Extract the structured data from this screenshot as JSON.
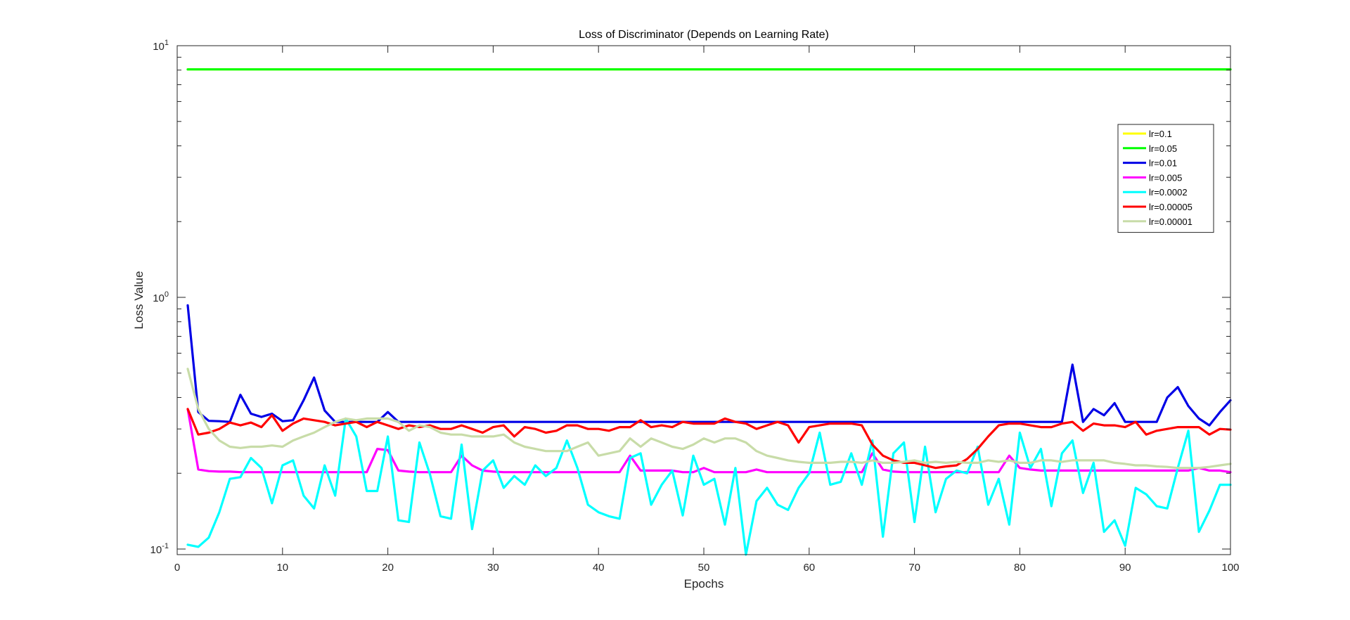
{
  "chart_data": {
    "type": "line",
    "title": "Loss of Discriminator (Depends on Learning Rate)",
    "xlabel": "Epochs",
    "ylabel": "Loss Value",
    "xlim": [
      0,
      100
    ],
    "ylim": [
      0.095,
      10
    ],
    "yscale": "log",
    "x_ticks": [
      0,
      10,
      20,
      30,
      40,
      50,
      60,
      70,
      80,
      90,
      100
    ],
    "y_ticks": [
      {
        "value": 0.1,
        "base": "10",
        "exp": "-1"
      },
      {
        "value": 1,
        "base": "10",
        "exp": "0"
      },
      {
        "value": 10,
        "base": "10",
        "exp": "1"
      }
    ],
    "grid": false,
    "legend_position": "top-right",
    "series": [
      {
        "name": "lr=0.1",
        "color": "#ffff00",
        "values": [
          8.05,
          8.05,
          8.05,
          8.05,
          8.05,
          8.05,
          8.05,
          8.05,
          8.05,
          8.05,
          8.05,
          8.05,
          8.05,
          8.05,
          8.05,
          8.05,
          8.05,
          8.05,
          8.05,
          8.05,
          8.05,
          8.05,
          8.05,
          8.05,
          8.05,
          8.05,
          8.05,
          8.05,
          8.05,
          8.05,
          8.05,
          8.05,
          8.05,
          8.05,
          8.05,
          8.05,
          8.05,
          8.05,
          8.05,
          8.05,
          8.05,
          8.05,
          8.05,
          8.05,
          8.05,
          8.05,
          8.05,
          8.05,
          8.05,
          8.05,
          8.05,
          8.05,
          8.05,
          8.05,
          8.05,
          8.05,
          8.05,
          8.05,
          8.05,
          8.05,
          8.05,
          8.05,
          8.05,
          8.05,
          8.05,
          8.05,
          8.05,
          8.05,
          8.05,
          8.05,
          8.05,
          8.05,
          8.05,
          8.05,
          8.05,
          8.05,
          8.05,
          8.05,
          8.05,
          8.05,
          8.05,
          8.05,
          8.05,
          8.05,
          8.05,
          8.05,
          8.05,
          8.05,
          8.05,
          8.05,
          8.05,
          8.05,
          8.05,
          8.05,
          8.05,
          8.05,
          8.05,
          8.05,
          8.05,
          8.05
        ]
      },
      {
        "name": "lr=0.05",
        "color": "#00ff00",
        "values": [
          8.05,
          8.05,
          8.05,
          8.05,
          8.05,
          8.05,
          8.05,
          8.05,
          8.05,
          8.05,
          8.05,
          8.05,
          8.05,
          8.05,
          8.05,
          8.05,
          8.05,
          8.05,
          8.05,
          8.05,
          8.05,
          8.05,
          8.05,
          8.05,
          8.05,
          8.05,
          8.05,
          8.05,
          8.05,
          8.05,
          8.05,
          8.05,
          8.05,
          8.05,
          8.05,
          8.05,
          8.05,
          8.05,
          8.05,
          8.05,
          8.05,
          8.05,
          8.05,
          8.05,
          8.05,
          8.05,
          8.05,
          8.05,
          8.05,
          8.05,
          8.05,
          8.05,
          8.05,
          8.05,
          8.05,
          8.05,
          8.05,
          8.05,
          8.05,
          8.05,
          8.05,
          8.05,
          8.05,
          8.05,
          8.05,
          8.05,
          8.05,
          8.05,
          8.05,
          8.05,
          8.05,
          8.05,
          8.05,
          8.05,
          8.05,
          8.05,
          8.05,
          8.05,
          8.05,
          8.05,
          8.05,
          8.05,
          8.05,
          8.05,
          8.05,
          8.05,
          8.05,
          8.05,
          8.05,
          8.05,
          8.05,
          8.05,
          8.05,
          8.05,
          8.05,
          8.05,
          8.05,
          8.05,
          8.05,
          8.05
        ]
      },
      {
        "name": "lr=0.01",
        "color": "#0000e6",
        "values": [
          0.93,
          0.35,
          0.323,
          0.322,
          0.32,
          0.41,
          0.345,
          0.335,
          0.345,
          0.322,
          0.325,
          0.39,
          0.48,
          0.355,
          0.32,
          0.32,
          0.32,
          0.32,
          0.32,
          0.35,
          0.32,
          0.32,
          0.32,
          0.32,
          0.32,
          0.32,
          0.32,
          0.32,
          0.32,
          0.32,
          0.32,
          0.32,
          0.32,
          0.32,
          0.32,
          0.32,
          0.32,
          0.32,
          0.32,
          0.32,
          0.32,
          0.32,
          0.32,
          0.32,
          0.32,
          0.32,
          0.32,
          0.32,
          0.32,
          0.32,
          0.32,
          0.32,
          0.32,
          0.32,
          0.32,
          0.32,
          0.32,
          0.32,
          0.32,
          0.32,
          0.32,
          0.32,
          0.32,
          0.32,
          0.32,
          0.32,
          0.32,
          0.32,
          0.32,
          0.32,
          0.32,
          0.32,
          0.32,
          0.32,
          0.32,
          0.32,
          0.32,
          0.32,
          0.32,
          0.32,
          0.32,
          0.32,
          0.32,
          0.32,
          0.54,
          0.32,
          0.36,
          0.34,
          0.38,
          0.32,
          0.32,
          0.32,
          0.32,
          0.4,
          0.44,
          0.37,
          0.33,
          0.31,
          0.35,
          0.39
        ]
      },
      {
        "name": "lr=0.005",
        "color": "#ff00ff",
        "values": [
          0.36,
          0.207,
          0.204,
          0.203,
          0.203,
          0.202,
          0.202,
          0.202,
          0.202,
          0.202,
          0.202,
          0.202,
          0.202,
          0.202,
          0.202,
          0.202,
          0.202,
          0.202,
          0.25,
          0.247,
          0.205,
          0.203,
          0.202,
          0.202,
          0.202,
          0.202,
          0.235,
          0.215,
          0.205,
          0.203,
          0.202,
          0.202,
          0.202,
          0.202,
          0.202,
          0.202,
          0.202,
          0.202,
          0.202,
          0.202,
          0.202,
          0.202,
          0.235,
          0.205,
          0.205,
          0.205,
          0.205,
          0.202,
          0.202,
          0.21,
          0.202,
          0.202,
          0.202,
          0.202,
          0.207,
          0.202,
          0.202,
          0.202,
          0.202,
          0.202,
          0.202,
          0.202,
          0.202,
          0.202,
          0.202,
          0.24,
          0.207,
          0.203,
          0.202,
          0.202,
          0.202,
          0.202,
          0.202,
          0.202,
          0.202,
          0.202,
          0.202,
          0.202,
          0.235,
          0.21,
          0.207,
          0.205,
          0.205,
          0.205,
          0.205,
          0.205,
          0.205,
          0.205,
          0.205,
          0.205,
          0.205,
          0.205,
          0.205,
          0.205,
          0.205,
          0.205,
          0.21,
          0.205,
          0.205,
          0.202
        ]
      },
      {
        "name": "lr=0.0002",
        "color": "#00ffff",
        "values": [
          0.104,
          0.102,
          0.111,
          0.14,
          0.19,
          0.193,
          0.23,
          0.21,
          0.152,
          0.215,
          0.225,
          0.163,
          0.145,
          0.215,
          0.163,
          0.33,
          0.28,
          0.17,
          0.17,
          0.28,
          0.13,
          0.128,
          0.265,
          0.198,
          0.135,
          0.132,
          0.26,
          0.12,
          0.205,
          0.225,
          0.175,
          0.195,
          0.18,
          0.215,
          0.195,
          0.21,
          0.27,
          0.21,
          0.15,
          0.14,
          0.135,
          0.132,
          0.23,
          0.24,
          0.15,
          0.18,
          0.205,
          0.136,
          0.235,
          0.18,
          0.19,
          0.125,
          0.21,
          0.095,
          0.155,
          0.175,
          0.15,
          0.143,
          0.175,
          0.2,
          0.29,
          0.18,
          0.185,
          0.24,
          0.18,
          0.27,
          0.112,
          0.24,
          0.265,
          0.128,
          0.255,
          0.14,
          0.19,
          0.205,
          0.2,
          0.255,
          0.15,
          0.19,
          0.125,
          0.29,
          0.21,
          0.25,
          0.148,
          0.24,
          0.27,
          0.167,
          0.22,
          0.117,
          0.13,
          0.103,
          0.175,
          0.165,
          0.148,
          0.145,
          0.21,
          0.295,
          0.117,
          0.142,
          0.18,
          0.18
        ]
      },
      {
        "name": "lr=0.00005",
        "color": "#ff0000",
        "values": [
          0.36,
          0.285,
          0.29,
          0.3,
          0.318,
          0.31,
          0.318,
          0.305,
          0.34,
          0.295,
          0.315,
          0.33,
          0.325,
          0.32,
          0.31,
          0.315,
          0.32,
          0.305,
          0.32,
          0.31,
          0.3,
          0.31,
          0.305,
          0.31,
          0.3,
          0.3,
          0.31,
          0.3,
          0.29,
          0.305,
          0.31,
          0.28,
          0.305,
          0.3,
          0.29,
          0.295,
          0.31,
          0.31,
          0.3,
          0.3,
          0.295,
          0.305,
          0.305,
          0.325,
          0.305,
          0.31,
          0.305,
          0.32,
          0.315,
          0.315,
          0.315,
          0.33,
          0.32,
          0.315,
          0.3,
          0.31,
          0.32,
          0.31,
          0.265,
          0.305,
          0.31,
          0.315,
          0.315,
          0.315,
          0.31,
          0.26,
          0.235,
          0.225,
          0.22,
          0.22,
          0.215,
          0.21,
          0.213,
          0.215,
          0.228,
          0.25,
          0.28,
          0.31,
          0.315,
          0.315,
          0.31,
          0.305,
          0.305,
          0.315,
          0.32,
          0.295,
          0.315,
          0.31,
          0.31,
          0.305,
          0.32,
          0.285,
          0.295,
          0.3,
          0.305,
          0.305,
          0.305,
          0.285,
          0.3,
          0.298
        ]
      },
      {
        "name": "lr=0.00001",
        "color": "#c8dca8",
        "values": [
          0.52,
          0.36,
          0.3,
          0.27,
          0.255,
          0.252,
          0.255,
          0.255,
          0.258,
          0.255,
          0.27,
          0.28,
          0.29,
          0.305,
          0.32,
          0.33,
          0.325,
          0.33,
          0.33,
          0.33,
          0.32,
          0.295,
          0.31,
          0.305,
          0.29,
          0.285,
          0.285,
          0.28,
          0.28,
          0.28,
          0.285,
          0.265,
          0.255,
          0.25,
          0.245,
          0.245,
          0.245,
          0.255,
          0.265,
          0.235,
          0.24,
          0.245,
          0.275,
          0.255,
          0.275,
          0.265,
          0.255,
          0.25,
          0.26,
          0.275,
          0.265,
          0.275,
          0.275,
          0.265,
          0.245,
          0.235,
          0.23,
          0.225,
          0.222,
          0.22,
          0.22,
          0.22,
          0.222,
          0.222,
          0.22,
          0.225,
          0.22,
          0.22,
          0.222,
          0.225,
          0.22,
          0.222,
          0.22,
          0.222,
          0.22,
          0.22,
          0.225,
          0.222,
          0.225,
          0.22,
          0.22,
          0.225,
          0.225,
          0.222,
          0.225,
          0.225,
          0.225,
          0.225,
          0.22,
          0.218,
          0.215,
          0.215,
          0.213,
          0.212,
          0.21,
          0.21,
          0.21,
          0.212,
          0.215,
          0.218
        ]
      }
    ]
  }
}
